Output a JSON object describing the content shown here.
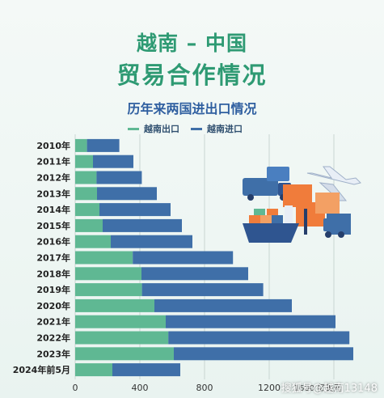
{
  "colors": {
    "export": "#5fb893",
    "import": "#3f6fa8",
    "title_green": "#2e9a73",
    "subtitle_blue": "#2f5fa0",
    "axis_text": "#333333"
  },
  "header": {
    "title_line1": "越南 – 中国",
    "title_line2": "贸易合作情况"
  },
  "chart_data": {
    "type": "bar",
    "orientation": "horizontal",
    "stacked": true,
    "title": "历年来两国进出口情况",
    "categories": [
      "2010年",
      "2011年",
      "2012年",
      "2013年",
      "2014年",
      "2015年",
      "2016年",
      "2017年",
      "2018年",
      "2019年",
      "2020年",
      "2021年",
      "2022年",
      "2023年",
      "2024年前5月"
    ],
    "series": [
      {
        "name": "越南出口",
        "color": "#5fb893",
        "values": [
          73,
          110,
          132,
          135,
          150,
          170,
          220,
          356,
          410,
          413,
          490,
          560,
          576,
          610,
          230
        ]
      },
      {
        "name": "越南进口",
        "color": "#3f6fa8",
        "values": [
          200,
          250,
          280,
          370,
          440,
          490,
          505,
          620,
          660,
          750,
          850,
          1050,
          1120,
          1110,
          420
        ]
      }
    ],
    "x_ticks": [
      "0",
      "400",
      "800",
      "1200",
      "1600"
    ],
    "xlim": [
      0,
      1690
    ],
    "grid": true,
    "legend_position": "top",
    "axis_unit_label": "1600 亿美元"
  },
  "watermark": "搜狐号@越南13148",
  "illustration": {
    "items": [
      "truck-icon",
      "cargo-ship-icon",
      "airplane-icon",
      "forklift-icon",
      "shipping-container-icon"
    ]
  }
}
